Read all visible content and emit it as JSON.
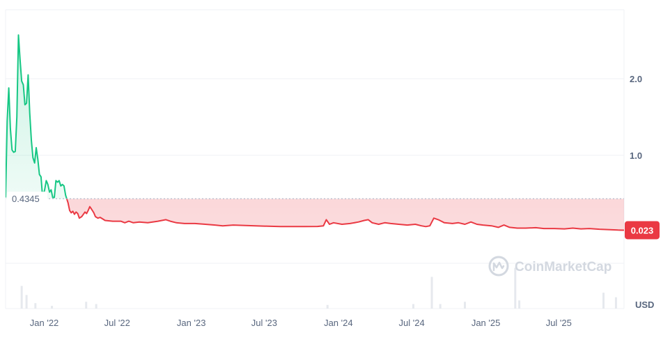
{
  "chart_data": {
    "type": "area",
    "currency_label": "USD",
    "watermark": "CoinMarketCap",
    "reference_value": 0.4345,
    "reference_label": "0.4345",
    "last_value_label": "0.023",
    "y_ticks": [
      {
        "value": 1.0,
        "label": "1.0"
      },
      {
        "value": 2.0,
        "label": "2.0"
      }
    ],
    "x_ticks": [
      {
        "date": "2022-01-01",
        "label": "Jan '22"
      },
      {
        "date": "2022-07-01",
        "label": "Jul '22"
      },
      {
        "date": "2023-01-01",
        "label": "Jan '23"
      },
      {
        "date": "2023-07-01",
        "label": "Jul '23"
      },
      {
        "date": "2024-01-01",
        "label": "Jan '24"
      },
      {
        "date": "2024-07-01",
        "label": "Jul '24"
      },
      {
        "date": "2025-01-01",
        "label": "Jan '25"
      },
      {
        "date": "2025-07-01",
        "label": "Jul '25"
      }
    ],
    "x_range": [
      "2021-09-27",
      "2025-12-10"
    ],
    "y_range": [
      -1.0,
      2.9
    ],
    "grid": true,
    "colors": {
      "up": "#16c784",
      "down": "#ea3943",
      "grid": "#eff2f5",
      "volume": "#e6e9ee"
    },
    "series": [
      {
        "values": [
          [
            "2021-09-27",
            0.45
          ],
          [
            "2021-10-01",
            1.45
          ],
          [
            "2021-10-05",
            1.88
          ],
          [
            "2021-10-09",
            1.35
          ],
          [
            "2021-10-13",
            1.07
          ],
          [
            "2021-10-17",
            1.04
          ],
          [
            "2021-10-21",
            1.05
          ],
          [
            "2021-10-25",
            1.5
          ],
          [
            "2021-10-29",
            2.57
          ],
          [
            "2021-11-02",
            2.25
          ],
          [
            "2021-11-06",
            1.97
          ],
          [
            "2021-11-10",
            1.92
          ],
          [
            "2021-11-14",
            1.66
          ],
          [
            "2021-11-18",
            1.68
          ],
          [
            "2021-11-22",
            2.05
          ],
          [
            "2021-11-26",
            1.55
          ],
          [
            "2021-11-30",
            1.2
          ],
          [
            "2021-12-04",
            0.97
          ],
          [
            "2021-12-08",
            0.9
          ],
          [
            "2021-12-12",
            1.1
          ],
          [
            "2021-12-16",
            0.95
          ],
          [
            "2021-12-20",
            0.75
          ],
          [
            "2021-12-24",
            0.72
          ],
          [
            "2021-12-28",
            0.45
          ],
          [
            "2022-01-02",
            0.55
          ],
          [
            "2022-01-06",
            0.67
          ],
          [
            "2022-01-10",
            0.62
          ],
          [
            "2022-01-14",
            0.52
          ],
          [
            "2022-01-18",
            0.55
          ],
          [
            "2022-01-22",
            0.45
          ],
          [
            "2022-01-26",
            0.45
          ],
          [
            "2022-01-30",
            0.67
          ],
          [
            "2022-02-03",
            0.65
          ],
          [
            "2022-02-07",
            0.67
          ],
          [
            "2022-02-11",
            0.6
          ],
          [
            "2022-02-15",
            0.62
          ],
          [
            "2022-02-19",
            0.6
          ],
          [
            "2022-02-23",
            0.48
          ],
          [
            "2022-03-01",
            0.38
          ],
          [
            "2022-03-05",
            0.28
          ],
          [
            "2022-03-09",
            0.25
          ],
          [
            "2022-03-13",
            0.27
          ],
          [
            "2022-03-17",
            0.23
          ],
          [
            "2022-03-21",
            0.26
          ],
          [
            "2022-03-25",
            0.24
          ],
          [
            "2022-03-29",
            0.18
          ],
          [
            "2022-04-04",
            0.2
          ],
          [
            "2022-04-08",
            0.23
          ],
          [
            "2022-04-12",
            0.26
          ],
          [
            "2022-04-16",
            0.24
          ],
          [
            "2022-04-20",
            0.28
          ],
          [
            "2022-04-24",
            0.33
          ],
          [
            "2022-04-28",
            0.3
          ],
          [
            "2022-05-04",
            0.25
          ],
          [
            "2022-05-08",
            0.2
          ],
          [
            "2022-05-14",
            0.18
          ],
          [
            "2022-05-20",
            0.19
          ],
          [
            "2022-06-01",
            0.15
          ],
          [
            "2022-06-20",
            0.14
          ],
          [
            "2022-07-10",
            0.14
          ],
          [
            "2022-07-20",
            0.12
          ],
          [
            "2022-07-30",
            0.14
          ],
          [
            "2022-08-10",
            0.12
          ],
          [
            "2022-08-25",
            0.13
          ],
          [
            "2022-09-15",
            0.12
          ],
          [
            "2022-10-10",
            0.14
          ],
          [
            "2022-10-30",
            0.16
          ],
          [
            "2022-11-10",
            0.14
          ],
          [
            "2022-11-25",
            0.12
          ],
          [
            "2022-12-15",
            0.11
          ],
          [
            "2023-01-10",
            0.11
          ],
          [
            "2023-02-05",
            0.1
          ],
          [
            "2023-03-01",
            0.09
          ],
          [
            "2023-03-20",
            0.08
          ],
          [
            "2023-04-15",
            0.09
          ],
          [
            "2023-05-10",
            0.085
          ],
          [
            "2023-06-10",
            0.08
          ],
          [
            "2023-07-10",
            0.075
          ],
          [
            "2023-08-10",
            0.07
          ],
          [
            "2023-09-10",
            0.07
          ],
          [
            "2023-10-10",
            0.07
          ],
          [
            "2023-11-10",
            0.072
          ],
          [
            "2023-11-25",
            0.08
          ],
          [
            "2023-12-02",
            0.16
          ],
          [
            "2023-12-10",
            0.1
          ],
          [
            "2023-12-20",
            0.12
          ],
          [
            "2024-01-10",
            0.1
          ],
          [
            "2024-01-30",
            0.11
          ],
          [
            "2024-02-20",
            0.13
          ],
          [
            "2024-03-05",
            0.15
          ],
          [
            "2024-03-15",
            0.16
          ],
          [
            "2024-03-25",
            0.12
          ],
          [
            "2024-04-10",
            0.1
          ],
          [
            "2024-04-25",
            0.12
          ],
          [
            "2024-05-10",
            0.11
          ],
          [
            "2024-05-30",
            0.1
          ],
          [
            "2024-06-20",
            0.09
          ],
          [
            "2024-07-10",
            0.1
          ],
          [
            "2024-07-25",
            0.08
          ],
          [
            "2024-08-05",
            0.07
          ],
          [
            "2024-08-15",
            0.08
          ],
          [
            "2024-08-25",
            0.18
          ],
          [
            "2024-09-05",
            0.16
          ],
          [
            "2024-09-20",
            0.12
          ],
          [
            "2024-10-10",
            0.11
          ],
          [
            "2024-10-25",
            0.12
          ],
          [
            "2024-11-10",
            0.1
          ],
          [
            "2024-11-25",
            0.13
          ],
          [
            "2024-12-10",
            0.1
          ],
          [
            "2024-12-25",
            0.09
          ],
          [
            "2025-01-15",
            0.08
          ],
          [
            "2025-02-01",
            0.06
          ],
          [
            "2025-02-15",
            0.09
          ],
          [
            "2025-03-01",
            0.06
          ],
          [
            "2025-03-20",
            0.05
          ],
          [
            "2025-04-10",
            0.05
          ],
          [
            "2025-05-05",
            0.055
          ],
          [
            "2025-05-25",
            0.045
          ],
          [
            "2025-06-20",
            0.045
          ],
          [
            "2025-07-15",
            0.04
          ],
          [
            "2025-08-05",
            0.05
          ],
          [
            "2025-08-25",
            0.04
          ],
          [
            "2025-09-15",
            0.045
          ],
          [
            "2025-10-10",
            0.035
          ],
          [
            "2025-11-05",
            0.03
          ],
          [
            "2025-11-25",
            0.025
          ],
          [
            "2025-12-10",
            0.023
          ]
        ]
      }
    ],
    "volume_bars": [
      [
        "2021-11-06",
        0.5
      ],
      [
        "2021-11-18",
        0.3
      ],
      [
        "2021-12-10",
        0.12
      ],
      [
        "2022-01-20",
        0.06
      ],
      [
        "2022-04-15",
        0.15
      ],
      [
        "2022-05-10",
        0.1
      ],
      [
        "2023-12-05",
        0.08
      ],
      [
        "2024-07-05",
        0.1
      ],
      [
        "2024-08-20",
        0.7
      ],
      [
        "2024-09-10",
        0.1
      ],
      [
        "2024-11-10",
        0.15
      ],
      [
        "2025-03-15",
        0.9
      ],
      [
        "2025-03-25",
        0.18
      ],
      [
        "2025-10-20",
        0.35
      ],
      [
        "2025-11-20",
        0.25
      ]
    ]
  }
}
